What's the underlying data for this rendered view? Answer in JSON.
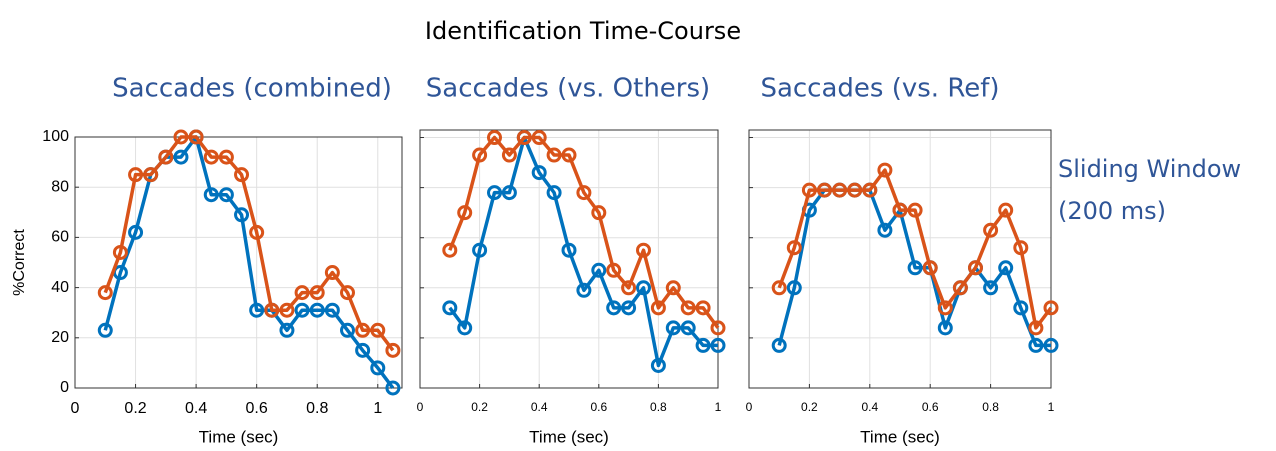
{
  "title": "Identification Time-Course",
  "note": [
    "Sliding Window",
    "(200 ms)"
  ],
  "chart_data": [
    {
      "type": "line",
      "title": "Saccades (combined)",
      "x_label": "Time (sec)",
      "y_label": "%Correct",
      "x": [
        0.1,
        0.15,
        0.2,
        0.25,
        0.3,
        0.35,
        0.4,
        0.45,
        0.5,
        0.55,
        0.6,
        0.65,
        0.7,
        0.75,
        0.8,
        0.85,
        0.9,
        0.95,
        1.0,
        1.05
      ],
      "series": [
        {
          "color": "#0072bd",
          "values": [
            23,
            46,
            62,
            85,
            92,
            92,
            100,
            77,
            77,
            69,
            31,
            31,
            23,
            31,
            31,
            31,
            23,
            15,
            8,
            0
          ]
        },
        {
          "color": "#d95319",
          "values": [
            38,
            54,
            85,
            85,
            92,
            100,
            100,
            92,
            92,
            85,
            62,
            31,
            31,
            38,
            38,
            46,
            38,
            23,
            23,
            15
          ]
        }
      ],
      "xlim": [
        0,
        1.08
      ],
      "xticks": [
        0,
        0.2,
        0.4,
        0.6,
        0.8,
        1
      ],
      "ylim": [
        0,
        100
      ],
      "yticks": [
        0,
        20,
        40,
        60,
        80,
        100
      ],
      "show_ytick_labels": true,
      "grid": true
    },
    {
      "type": "line",
      "title": "Saccades (vs. Others)",
      "x_label": "Time (sec)",
      "x": [
        0.1,
        0.15,
        0.2,
        0.25,
        0.3,
        0.35,
        0.4,
        0.45,
        0.5,
        0.55,
        0.6,
        0.65,
        0.7,
        0.75,
        0.8,
        0.85,
        0.9,
        0.95,
        1.0
      ],
      "series": [
        {
          "color": "#0072bd",
          "values": [
            32,
            24,
            55,
            78,
            78,
            100,
            86,
            78,
            55,
            39,
            47,
            32,
            32,
            40,
            9,
            24,
            24,
            17,
            17
          ]
        },
        {
          "color": "#d95319",
          "values": [
            55,
            70,
            93,
            100,
            93,
            100,
            100,
            93,
            93,
            78,
            70,
            47,
            40,
            55,
            32,
            40,
            32,
            32,
            24
          ]
        }
      ],
      "xlim": [
        0,
        1
      ],
      "xticks": [
        0,
        0.2,
        0.4,
        0.6,
        0.8,
        1
      ],
      "ylim": [
        0,
        103
      ],
      "yticks": [
        20,
        40,
        60,
        80,
        100
      ],
      "show_ytick_labels": false,
      "grid": true
    },
    {
      "type": "line",
      "title": "Saccades (vs. Ref)",
      "x_label": "Time (sec)",
      "x": [
        0.1,
        0.15,
        0.2,
        0.25,
        0.3,
        0.35,
        0.4,
        0.45,
        0.5,
        0.55,
        0.6,
        0.65,
        0.7,
        0.75,
        0.8,
        0.85,
        0.9,
        0.95,
        1.0
      ],
      "series": [
        {
          "color": "#0072bd",
          "values": [
            17,
            40,
            71,
            79,
            79,
            79,
            79,
            63,
            71,
            48,
            48,
            24,
            40,
            48,
            40,
            48,
            32,
            17,
            17
          ]
        },
        {
          "color": "#d95319",
          "values": [
            40,
            56,
            79,
            79,
            79,
            79,
            79,
            87,
            71,
            71,
            48,
            32,
            40,
            48,
            63,
            71,
            56,
            24,
            32
          ]
        }
      ],
      "xlim": [
        0,
        1
      ],
      "xticks": [
        0,
        0.2,
        0.4,
        0.6,
        0.8,
        1
      ],
      "ylim": [
        0,
        103
      ],
      "yticks": [
        20,
        40,
        60,
        80,
        100
      ],
      "show_ytick_labels": false,
      "grid": true
    }
  ]
}
